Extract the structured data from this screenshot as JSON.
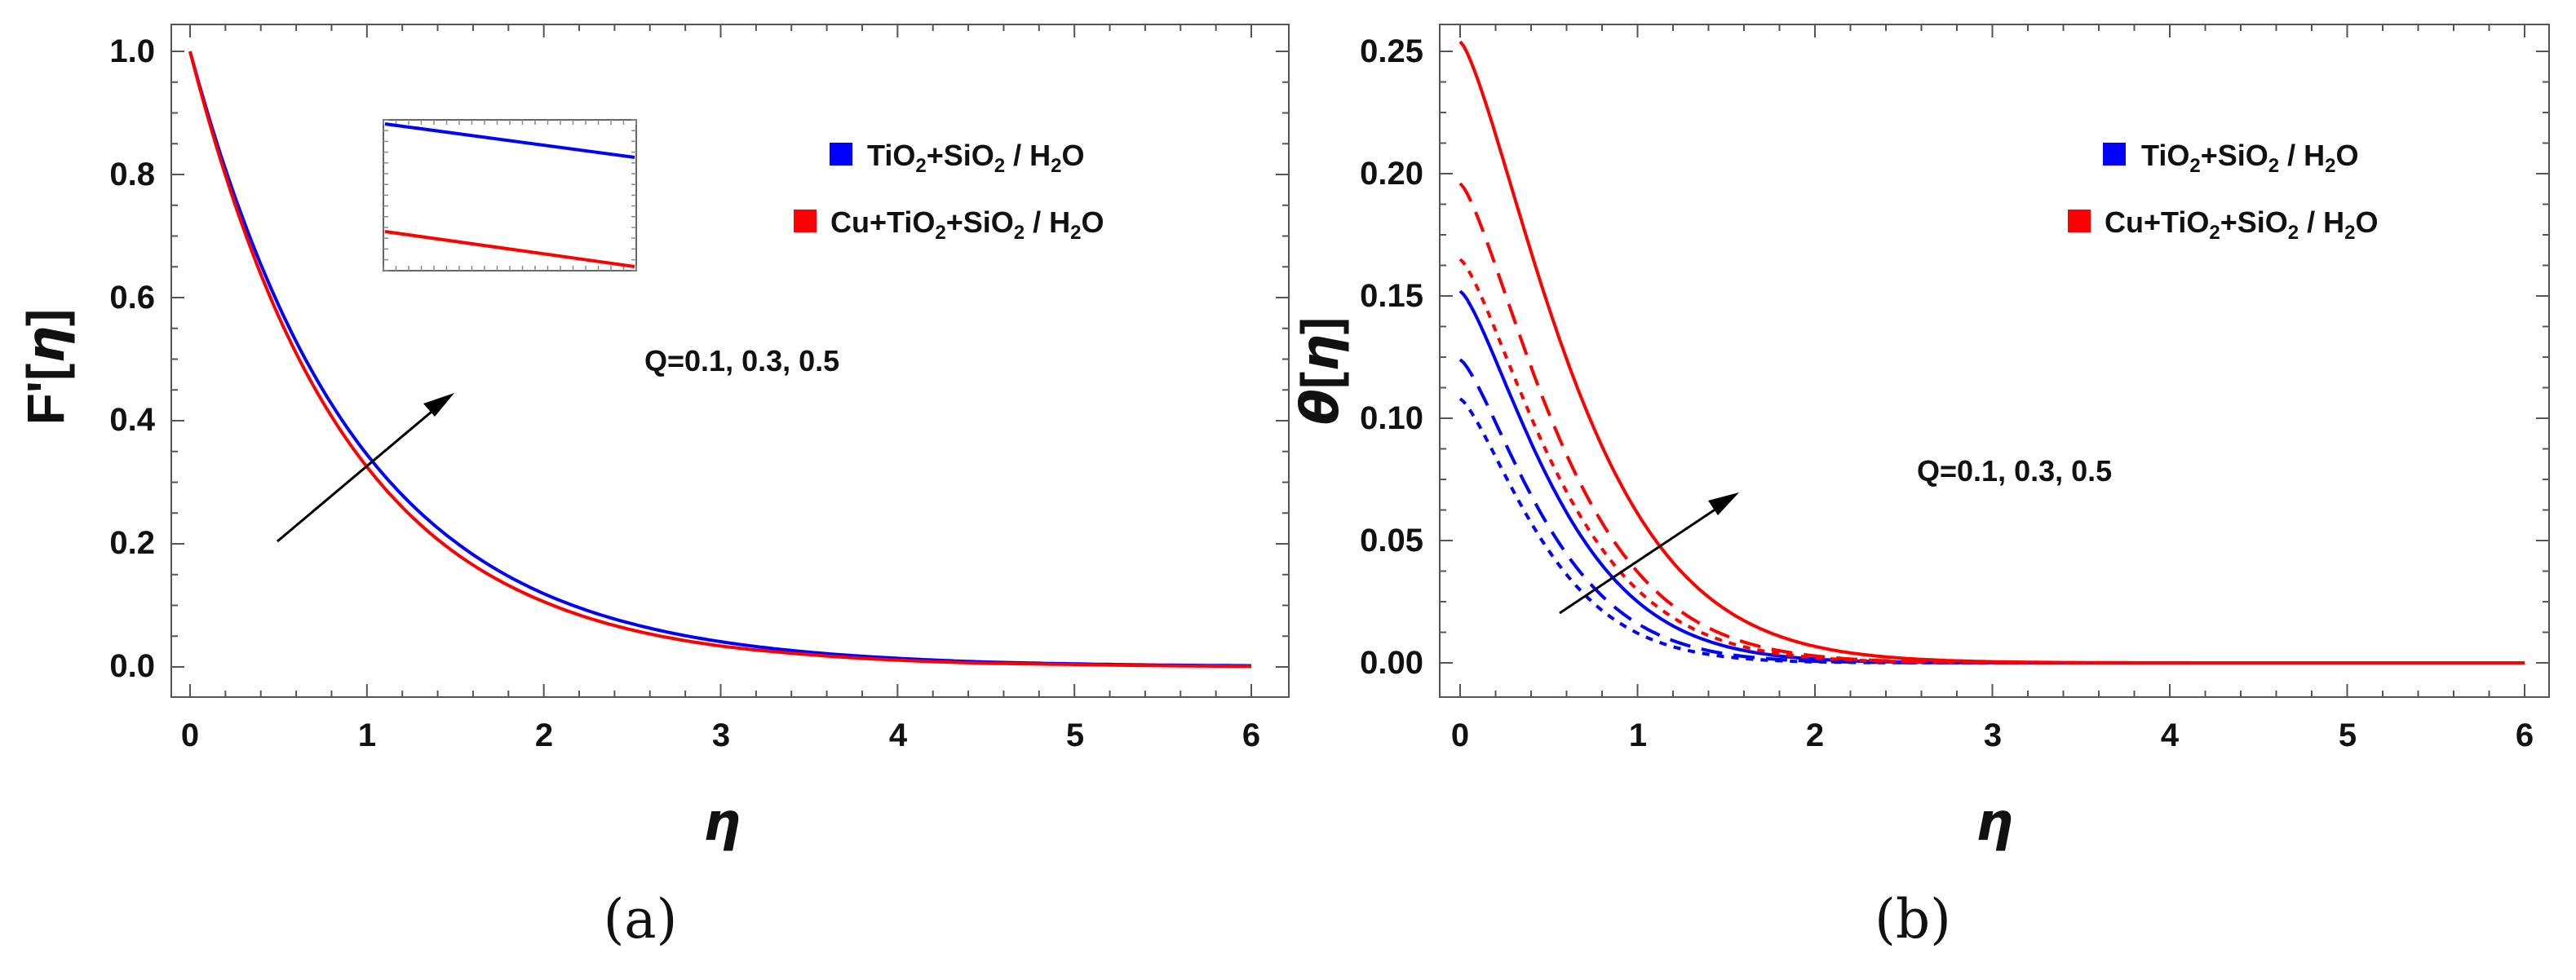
{
  "figure": {
    "panel_a_caption": "(a)",
    "panel_b_caption": "(b)"
  },
  "chart_data": [
    {
      "panel": "a",
      "type": "line",
      "ylabel": "F'[η]",
      "ylabel_prefix": "F'[",
      "ylabel_var": "η",
      "ylabel_suffix": "]",
      "xlabel": "η",
      "xlim": [
        0,
        6
      ],
      "ylim": [
        0,
        1.0
      ],
      "x_ticks": [
        "0",
        "1",
        "2",
        "3",
        "4",
        "5",
        "6"
      ],
      "y_ticks": [
        "0.0",
        "0.2",
        "0.4",
        "0.6",
        "0.8",
        "1.0"
      ],
      "legend": [
        {
          "label": "TiO2+SiO2 / H2O",
          "color": "#0000ff"
        },
        {
          "label": "Cu+TiO2+SiO2 / H2O",
          "color": "#ff0000"
        }
      ],
      "annotation": "Q=0.1, 0.3, 0.5",
      "series": [
        {
          "name": "TiO2+SiO2 / H2O",
          "color": "#0000ff",
          "style": "solid",
          "x": [
            0,
            0.5,
            1,
            1.5,
            2,
            2.5,
            3,
            3.5,
            4,
            4.5,
            5,
            5.5,
            6
          ],
          "values": [
            1.0,
            0.588,
            0.345,
            0.203,
            0.119,
            0.07,
            0.041,
            0.024,
            0.014,
            0.008,
            0.005,
            0.003,
            0.002
          ]
        },
        {
          "name": "Cu+TiO2+SiO2 / H2O",
          "color": "#ff0000",
          "style": "solid",
          "x": [
            0,
            0.5,
            1,
            1.5,
            2,
            2.5,
            3,
            3.5,
            4,
            4.5,
            5,
            5.5,
            6
          ],
          "values": [
            1.0,
            0.57,
            0.325,
            0.185,
            0.106,
            0.06,
            0.034,
            0.02,
            0.011,
            0.006,
            0.004,
            0.002,
            0.001
          ]
        }
      ]
    },
    {
      "panel": "b",
      "type": "line",
      "ylabel": "θ[η]",
      "ylabel_var": "θ",
      "ylabel_open": "[",
      "ylabel_var2": "η",
      "ylabel_close": "]",
      "xlabel": "η",
      "xlim": [
        0,
        6
      ],
      "ylim": [
        0,
        0.25
      ],
      "x_ticks": [
        "0",
        "1",
        "2",
        "3",
        "4",
        "5",
        "6"
      ],
      "y_ticks": [
        "0.00",
        "0.05",
        "0.10",
        "0.15",
        "0.20",
        "0.25"
      ],
      "legend": [
        {
          "label": "TiO2+SiO2 / H2O",
          "color": "#0000ff"
        },
        {
          "label": "Cu+TiO2+SiO2 / H2O",
          "color": "#ff0000"
        }
      ],
      "annotation": "Q=0.1, 0.3, 0.5",
      "series": [
        {
          "name": "TiO2+SiO2 / H2O, Q=0.1",
          "color": "#0000ff",
          "style": "dotted",
          "theta0": 0.108,
          "decay": 2.3
        },
        {
          "name": "TiO2+SiO2 / H2O, Q=0.3",
          "color": "#0000ff",
          "style": "dashed",
          "theta0": 0.124,
          "decay": 2.15
        },
        {
          "name": "TiO2+SiO2 / H2O, Q=0.5",
          "color": "#0000ff",
          "style": "solid",
          "theta0": 0.152,
          "decay": 1.9
        },
        {
          "name": "Cu+TiO2+SiO2 / H2O, Q=0.1",
          "color": "#ff0000",
          "style": "dotted",
          "theta0": 0.165,
          "decay": 1.8
        },
        {
          "name": "Cu+TiO2+SiO2 / H2O, Q=0.3",
          "color": "#ff0000",
          "style": "dashed",
          "theta0": 0.196,
          "decay": 1.75
        },
        {
          "name": "Cu+TiO2+SiO2 / H2O, Q=0.5",
          "color": "#ff0000",
          "style": "solid",
          "theta0": 0.254,
          "decay": 1.5
        }
      ]
    }
  ]
}
